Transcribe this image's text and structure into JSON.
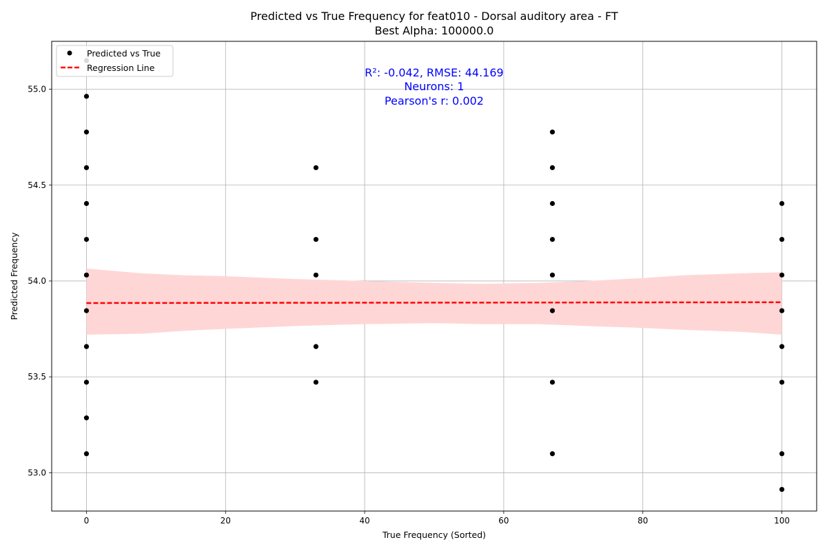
{
  "chart_data": {
    "type": "scatter",
    "title": "Predicted vs True Frequency for feat010 - Dorsal auditory area - FT",
    "subtitle": "Best Alpha: 100000.0",
    "xlabel": "True Frequency (Sorted)",
    "ylabel": "Predicted Frequency",
    "xlim": [
      -5,
      105
    ],
    "ylim": [
      52.8,
      55.25
    ],
    "xticks": [
      0,
      20,
      40,
      60,
      80,
      100
    ],
    "yticks": [
      53.0,
      53.5,
      54.0,
      54.5,
      55.0
    ],
    "xtick_labels": [
      "0",
      "20",
      "40",
      "60",
      "80",
      "100"
    ],
    "ytick_labels": [
      "53.0",
      "53.5",
      "54.0",
      "54.5",
      "55.0"
    ],
    "grid": true,
    "legend_position": "top-left",
    "annotations": [
      "R²: -0.042, RMSE: 44.169",
      "Neurons: 1",
      "Pearson's r: 0.002"
    ],
    "series": [
      {
        "name": "Predicted vs True",
        "kind": "scatter",
        "color": "#000000",
        "points": [
          [
            0,
            55.15
          ],
          [
            0,
            54.963
          ],
          [
            0,
            54.777
          ],
          [
            0,
            54.591
          ],
          [
            0,
            54.404
          ],
          [
            0,
            54.217
          ],
          [
            0,
            54.031
          ],
          [
            0,
            53.845
          ],
          [
            0,
            53.658
          ],
          [
            0,
            53.472
          ],
          [
            0,
            53.286
          ],
          [
            0,
            53.099
          ],
          [
            33,
            54.591
          ],
          [
            33,
            54.217
          ],
          [
            33,
            54.031
          ],
          [
            33,
            53.658
          ],
          [
            33,
            53.472
          ],
          [
            67,
            54.777
          ],
          [
            67,
            54.591
          ],
          [
            67,
            54.404
          ],
          [
            67,
            54.217
          ],
          [
            67,
            54.031
          ],
          [
            67,
            53.845
          ],
          [
            67,
            53.472
          ],
          [
            67,
            53.099
          ],
          [
            100,
            54.404
          ],
          [
            100,
            54.217
          ],
          [
            100,
            54.031
          ],
          [
            100,
            53.845
          ],
          [
            100,
            53.658
          ],
          [
            100,
            53.472
          ],
          [
            100,
            53.099
          ],
          [
            100,
            52.913
          ]
        ]
      },
      {
        "name": "Regression Line",
        "kind": "line",
        "color": "#ff0000",
        "points": [
          [
            0,
            53.885
          ],
          [
            100,
            53.889
          ]
        ]
      },
      {
        "kind": "confidence-band",
        "color": "#ffd6d6",
        "x": [
          0,
          8,
          14,
          20,
          30,
          40,
          50,
          57,
          65,
          72,
          80,
          86,
          94,
          100
        ],
        "upper": [
          54.065,
          54.04,
          54.03,
          54.025,
          54.01,
          54.0,
          53.99,
          53.985,
          53.99,
          54.0,
          54.015,
          54.03,
          54.04,
          54.045
        ],
        "lower": [
          53.72,
          53.725,
          53.74,
          53.75,
          53.765,
          53.775,
          53.78,
          53.775,
          53.775,
          53.765,
          53.755,
          53.745,
          53.735,
          53.72
        ]
      }
    ]
  }
}
